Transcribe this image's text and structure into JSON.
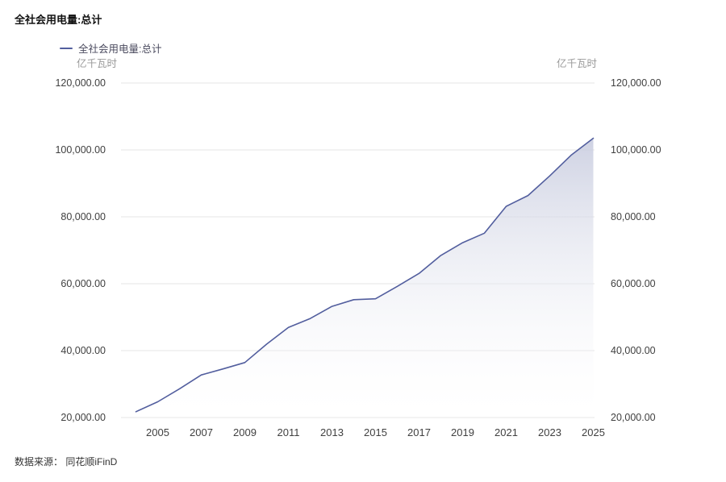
{
  "page": {
    "title": "全社会用电量:总计",
    "source": "数据来源： 同花顺iFinD"
  },
  "legend": {
    "label": "全社会用电量:总计"
  },
  "axes": {
    "left_unit": "亿千瓦时",
    "right_unit": "亿千瓦时"
  },
  "colors": {
    "line": "#525E9E",
    "fill_top": "#C8CCDF",
    "fill_bottom": "#FFFFFF",
    "grid": "#E6E6E6",
    "tick_text": "#404040",
    "unit_text": "#999999"
  },
  "chart_data": {
    "type": "area",
    "title": "全社会用电量:总计",
    "ylabel_unit": "亿千瓦时",
    "x": [
      2004,
      2005,
      2006,
      2007,
      2008,
      2009,
      2010,
      2011,
      2012,
      2013,
      2014,
      2015,
      2016,
      2017,
      2018,
      2019,
      2020,
      2021,
      2022,
      2023,
      2024,
      2025
    ],
    "values": [
      21735,
      24689,
      28588,
      32712,
      34541,
      36430,
      41923,
      46928,
      49591,
      53223,
      55233,
      55500,
      59198,
      63077,
      68449,
      72255,
      75110,
      83128,
      86372,
      92241,
      98521,
      103500
    ],
    "x_tick_labels": [
      "2005",
      "2007",
      "2009",
      "2011",
      "2013",
      "2015",
      "2017",
      "2019",
      "2021",
      "2023",
      "2025"
    ],
    "y_ticks": [
      20000,
      40000,
      60000,
      80000,
      100000,
      120000
    ],
    "ylim": [
      20000,
      120000
    ],
    "grid": true,
    "legend_position": "top-left"
  }
}
